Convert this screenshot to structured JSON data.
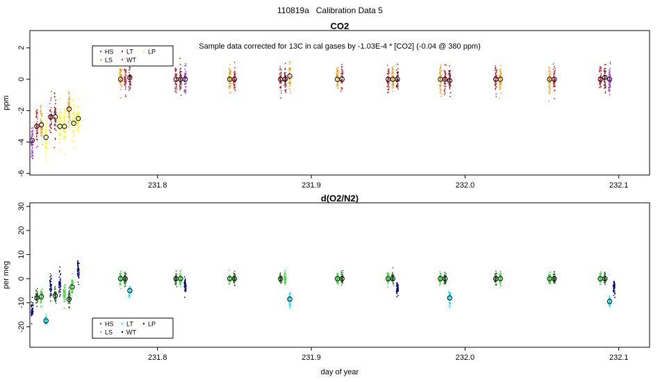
{
  "suptitle": "110819a   Calibration Data 5",
  "chart_data": [
    {
      "type": "scatter",
      "title": "CO2",
      "subtitle": "Sample data corrected for 13C in cal gases by -1.03E-4 * [CO2] (-0.04 @ 380 ppm)",
      "xlabel": "",
      "ylabel": "ppm",
      "xlim": [
        231.717,
        232.12
      ],
      "ylim": [
        -6.1,
        3.1
      ],
      "xticks": [
        231.8,
        231.9,
        232.0,
        232.1
      ],
      "xtick_labels": [
        "231.8",
        "231.9",
        "232.0",
        "232.1"
      ],
      "yticks": [
        -6,
        -4,
        -2,
        0,
        2
      ],
      "ytick_labels": [
        "-6",
        "-4",
        "-2",
        "0",
        "2"
      ],
      "legend_position": "top-left",
      "legend": [
        {
          "name": "HS",
          "color": "#cc1f2e"
        },
        {
          "name": "LT",
          "color": "#8b1c2a"
        },
        {
          "name": "LP",
          "color": "#ffff00"
        },
        {
          "name": "LS",
          "color": "#ff9900"
        },
        {
          "name": "WT",
          "color": "#a020f0"
        }
      ],
      "spread": 0.7,
      "clusters": [
        {
          "x": 231.7185,
          "y": -3.9,
          "color": "#a020f0",
          "s": 0.9,
          "mean": true
        },
        {
          "x": 231.7215,
          "y": -3.0,
          "color": "#cc1f2e",
          "s": 0.8,
          "mean": true
        },
        {
          "x": 231.7245,
          "y": -2.9,
          "color": "#ff9900",
          "s": 0.8,
          "mean": true
        },
        {
          "x": 231.7275,
          "y": -3.7,
          "color": "#ffff00",
          "s": 0.9,
          "mean": true
        },
        {
          "x": 231.7305,
          "y": -2.4,
          "color": "#cc1f2e",
          "s": 0.8,
          "mean": true
        },
        {
          "x": 231.7335,
          "y": -2.4,
          "color": "#8b1c2a",
          "s": 0.8,
          "mean": true
        },
        {
          "x": 231.7365,
          "y": -3.0,
          "color": "#ffff00",
          "s": 0.9,
          "mean": true
        },
        {
          "x": 231.7395,
          "y": -3.0,
          "color": "#ffff00",
          "s": 0.9,
          "mean": true
        },
        {
          "x": 231.7425,
          "y": -1.9,
          "color": "#ff9900",
          "s": 0.7,
          "mean": true
        },
        {
          "x": 231.7455,
          "y": -2.8,
          "color": "#ffff00",
          "s": 0.9,
          "mean": true
        },
        {
          "x": 231.7485,
          "y": -2.5,
          "color": "#ffff00",
          "s": 0.9,
          "mean": true
        },
        {
          "x": 231.776,
          "y": 0.0,
          "color": "#ff9900",
          "s": 0.6,
          "mean": true
        },
        {
          "x": 231.779,
          "y": 0.0,
          "color": "#cc1f2e",
          "s": 0.6,
          "mean": false
        },
        {
          "x": 231.782,
          "y": 0.1,
          "color": "#8b1c2a",
          "s": 0.6,
          "mean": true
        },
        {
          "x": 231.812,
          "y": 0.0,
          "color": "#cc1f2e",
          "s": 0.6,
          "mean": true
        },
        {
          "x": 231.815,
          "y": 0.0,
          "color": "#8b1c2a",
          "s": 0.6,
          "mean": true
        },
        {
          "x": 231.818,
          "y": 0.0,
          "color": "#a020f0",
          "s": 0.6,
          "mean": true
        },
        {
          "x": 231.847,
          "y": 0.0,
          "color": "#ff9900",
          "s": 0.6,
          "mean": true
        },
        {
          "x": 231.85,
          "y": 0.0,
          "color": "#cc1f2e",
          "s": 0.6,
          "mean": true
        },
        {
          "x": 231.88,
          "y": 0.0,
          "color": "#cc1f2e",
          "s": 0.6,
          "mean": true
        },
        {
          "x": 231.883,
          "y": 0.0,
          "color": "#8b1c2a",
          "s": 0.6,
          "mean": true
        },
        {
          "x": 231.886,
          "y": 0.2,
          "color": "#ff9900",
          "s": 0.6,
          "mean": true
        },
        {
          "x": 231.917,
          "y": 0.0,
          "color": "#ff9900",
          "s": 0.6,
          "mean": true
        },
        {
          "x": 231.92,
          "y": 0.0,
          "color": "#cc1f2e",
          "s": 0.6,
          "mean": true
        },
        {
          "x": 231.95,
          "y": 0.0,
          "color": "#cc1f2e",
          "s": 0.6,
          "mean": true
        },
        {
          "x": 231.953,
          "y": 0.0,
          "color": "#ff9900",
          "s": 0.6,
          "mean": true
        },
        {
          "x": 231.956,
          "y": 0.0,
          "color": "#8b1c2a",
          "s": 0.6,
          "mean": true
        },
        {
          "x": 231.984,
          "y": 0.0,
          "color": "#ff9900",
          "s": 0.6,
          "mean": true
        },
        {
          "x": 231.987,
          "y": 0.0,
          "color": "#cc1f2e",
          "s": 0.6,
          "mean": true
        },
        {
          "x": 231.99,
          "y": -0.1,
          "color": "#8b1c2a",
          "s": 0.6,
          "mean": true
        },
        {
          "x": 232.02,
          "y": 0.0,
          "color": "#cc1f2e",
          "s": 0.6,
          "mean": true
        },
        {
          "x": 232.023,
          "y": 0.0,
          "color": "#ff9900",
          "s": 0.6,
          "mean": true
        },
        {
          "x": 232.055,
          "y": 0.0,
          "color": "#ff9900",
          "s": 0.6,
          "mean": true
        },
        {
          "x": 232.058,
          "y": 0.0,
          "color": "#cc1f2e",
          "s": 0.6,
          "mean": true
        },
        {
          "x": 232.088,
          "y": 0.0,
          "color": "#cc1f2e",
          "s": 0.6,
          "mean": true
        },
        {
          "x": 232.091,
          "y": 0.1,
          "color": "#8b1c2a",
          "s": 0.6,
          "mean": true
        },
        {
          "x": 232.094,
          "y": 0.0,
          "color": "#a020f0",
          "s": 0.6,
          "mean": true
        }
      ]
    },
    {
      "type": "scatter",
      "title": "d(O2/N2)",
      "xlabel": "day of year",
      "ylabel": "per meg",
      "xlim": [
        231.717,
        232.12
      ],
      "ylim": [
        -28.5,
        31.5
      ],
      "xticks": [
        231.8,
        231.9,
        232.0,
        232.1
      ],
      "xtick_labels": [
        "231.8",
        "231.9",
        "232.0",
        "232.1"
      ],
      "yticks": [
        -20,
        -10,
        0,
        10,
        20,
        30
      ],
      "ytick_labels": [
        "-20",
        "-10",
        "0",
        "10",
        "20",
        "30"
      ],
      "legend_position": "bottom-left",
      "legend": [
        {
          "name": "HS",
          "color": "#1a6b1a"
        },
        {
          "name": "LT",
          "color": "#00e5ff"
        },
        {
          "name": "LP",
          "color": "#000080"
        },
        {
          "name": "LS",
          "color": "#33dd33"
        },
        {
          "name": "WT",
          "color": "#000000"
        }
      ],
      "spread": 0.7,
      "clusters": [
        {
          "x": 231.7185,
          "y": -13.5,
          "color": "#000080",
          "s": 3.0,
          "mean": false
        },
        {
          "x": 231.7215,
          "y": -8.0,
          "color": "#1a6b1a",
          "s": 2.5,
          "mean": true
        },
        {
          "x": 231.7245,
          "y": -7.5,
          "color": "#33dd33",
          "s": 2.5,
          "mean": true
        },
        {
          "x": 231.7275,
          "y": -17.5,
          "color": "#00e5ff",
          "s": 1.5,
          "mean": true
        },
        {
          "x": 231.7305,
          "y": -3.5,
          "color": "#000080",
          "s": 4.0,
          "mean": false
        },
        {
          "x": 231.7335,
          "y": -7.0,
          "color": "#1a6b1a",
          "s": 2.5,
          "mean": true
        },
        {
          "x": 231.7365,
          "y": -2.0,
          "color": "#000080",
          "s": 4.5,
          "mean": false
        },
        {
          "x": 231.7395,
          "y": -7.0,
          "color": "#33dd33",
          "s": 2.5,
          "mean": false
        },
        {
          "x": 231.7425,
          "y": -8.5,
          "color": "#1a6b1a",
          "s": 2.5,
          "mean": true
        },
        {
          "x": 231.7445,
          "y": -3.5,
          "color": "#33dd33",
          "s": 2.5,
          "mean": true
        },
        {
          "x": 231.7485,
          "y": 3.5,
          "color": "#000080",
          "s": 5.0,
          "mean": false
        },
        {
          "x": 231.776,
          "y": 0.0,
          "color": "#33dd33",
          "s": 1.8,
          "mean": true
        },
        {
          "x": 231.779,
          "y": 0.0,
          "color": "#1a6b1a",
          "s": 1.8,
          "mean": true
        },
        {
          "x": 231.782,
          "y": -5.0,
          "color": "#00e5ff",
          "s": 1.8,
          "mean": true
        },
        {
          "x": 231.812,
          "y": 0.0,
          "color": "#1a6b1a",
          "s": 1.8,
          "mean": true
        },
        {
          "x": 231.815,
          "y": 0.0,
          "color": "#33dd33",
          "s": 1.8,
          "mean": true
        },
        {
          "x": 231.818,
          "y": -2.5,
          "color": "#000080",
          "s": 2.2,
          "mean": false
        },
        {
          "x": 231.847,
          "y": 0.0,
          "color": "#33dd33",
          "s": 1.8,
          "mean": true
        },
        {
          "x": 231.85,
          "y": 0.0,
          "color": "#1a6b1a",
          "s": 1.8,
          "mean": true
        },
        {
          "x": 231.88,
          "y": 0.0,
          "color": "#1a6b1a",
          "s": 1.8,
          "mean": true
        },
        {
          "x": 231.883,
          "y": 0.0,
          "color": "#33dd33",
          "s": 1.8,
          "mean": false
        },
        {
          "x": 231.886,
          "y": -8.5,
          "color": "#00e5ff",
          "s": 1.8,
          "mean": true
        },
        {
          "x": 231.917,
          "y": 0.0,
          "color": "#33dd33",
          "s": 1.8,
          "mean": true
        },
        {
          "x": 231.92,
          "y": 0.0,
          "color": "#1a6b1a",
          "s": 1.8,
          "mean": true
        },
        {
          "x": 231.95,
          "y": 0.0,
          "color": "#33dd33",
          "s": 1.8,
          "mean": true
        },
        {
          "x": 231.953,
          "y": 0.0,
          "color": "#1a6b1a",
          "s": 1.8,
          "mean": true
        },
        {
          "x": 231.956,
          "y": -4.0,
          "color": "#000080",
          "s": 2.0,
          "mean": false
        },
        {
          "x": 231.984,
          "y": 0.0,
          "color": "#33dd33",
          "s": 1.8,
          "mean": true
        },
        {
          "x": 231.987,
          "y": 0.0,
          "color": "#1a6b1a",
          "s": 1.8,
          "mean": true
        },
        {
          "x": 231.99,
          "y": -8.0,
          "color": "#00e5ff",
          "s": 2.5,
          "mean": true
        },
        {
          "x": 232.02,
          "y": 0.0,
          "color": "#1a6b1a",
          "s": 1.8,
          "mean": true
        },
        {
          "x": 232.023,
          "y": 0.0,
          "color": "#33dd33",
          "s": 1.8,
          "mean": true
        },
        {
          "x": 232.055,
          "y": 0.0,
          "color": "#33dd33",
          "s": 1.8,
          "mean": true
        },
        {
          "x": 232.058,
          "y": 0.0,
          "color": "#1a6b1a",
          "s": 1.8,
          "mean": true
        },
        {
          "x": 232.088,
          "y": 0.0,
          "color": "#33dd33",
          "s": 1.8,
          "mean": true
        },
        {
          "x": 232.091,
          "y": 0.0,
          "color": "#1a6b1a",
          "s": 1.8,
          "mean": true
        },
        {
          "x": 232.094,
          "y": -9.5,
          "color": "#00e5ff",
          "s": 1.8,
          "mean": true
        },
        {
          "x": 232.097,
          "y": -3.5,
          "color": "#000080",
          "s": 2.0,
          "mean": false
        }
      ]
    }
  ]
}
